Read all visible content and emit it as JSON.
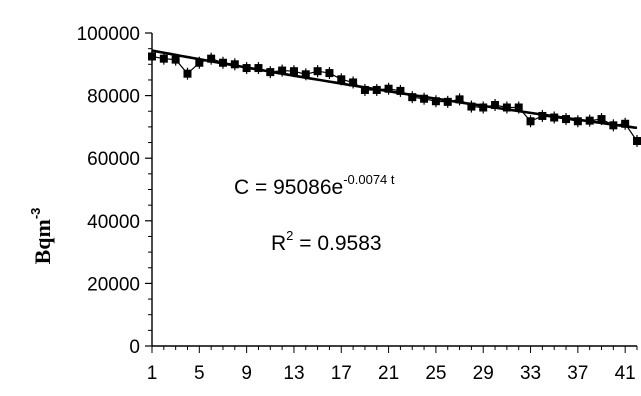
{
  "chart_data": {
    "type": "scatter",
    "title": "",
    "xlabel": "",
    "ylabel": "Bqm",
    "ylabel_sup": "-3",
    "xlim": [
      1,
      42
    ],
    "ylim": [
      0,
      100000
    ],
    "x_ticks": [
      1,
      5,
      9,
      13,
      17,
      21,
      25,
      29,
      33,
      37,
      41
    ],
    "y_ticks": [
      0,
      20000,
      40000,
      60000,
      80000,
      100000
    ],
    "grid": false,
    "series": [
      {
        "x": [
          1,
          2,
          3,
          4,
          5,
          6,
          7,
          8,
          9,
          10,
          11,
          12,
          13,
          14,
          15,
          16,
          17,
          18,
          19,
          20,
          21,
          22,
          23,
          24,
          25,
          26,
          27,
          28,
          29,
          30,
          31,
          32,
          33,
          34,
          35,
          36,
          37,
          38,
          39,
          40,
          41,
          42
        ],
        "values": [
          92500,
          91800,
          91500,
          87000,
          90500,
          91800,
          90500,
          90000,
          88800,
          88800,
          87500,
          88000,
          87800,
          86800,
          87800,
          87200,
          85200,
          84200,
          81800,
          81800,
          82200,
          81500,
          79500,
          79000,
          78200,
          78000,
          78800,
          76500,
          76200,
          77000,
          76200,
          76200,
          71800,
          73500,
          73000,
          72500,
          71800,
          72000,
          72500,
          70500,
          71000,
          65500
        ]
      }
    ],
    "trendline": {
      "type": "exponential",
      "a": 95086,
      "b": -0.0074
    },
    "annotations": {
      "equation_base": "C = 95086e",
      "equation_exp": "-0.0074 t",
      "r2_base": "R",
      "r2_sup": "2",
      "r2_value": " = 0.9583"
    }
  }
}
